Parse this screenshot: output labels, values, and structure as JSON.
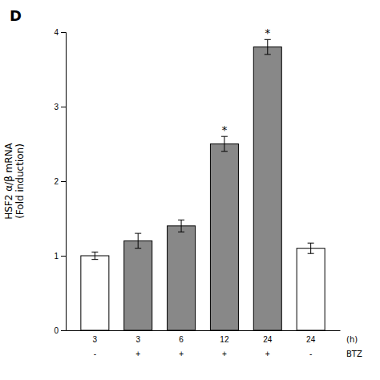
{
  "chart_data": {
    "type": "bar",
    "title": "D",
    "categories": [
      [
        "3",
        "-"
      ],
      [
        "3",
        "+"
      ],
      [
        "6",
        "+"
      ],
      [
        "12",
        "+"
      ],
      [
        "24",
        "+"
      ],
      [
        "24",
        "-"
      ]
    ],
    "xlabel": [
      "(h)",
      "BTZ"
    ],
    "ylabel": "HSF2 α/β mRNA\n(Fold induction)",
    "values": [
      1.0,
      1.2,
      1.4,
      2.5,
      3.8,
      1.1
    ],
    "errors": [
      0.05,
      0.1,
      0.08,
      0.1,
      0.1,
      0.07
    ],
    "colors": [
      "white",
      "#888888",
      "#888888",
      "#888888",
      "#888888",
      "white"
    ],
    "annotations": [
      {
        "text": "*",
        "index": 3
      },
      {
        "text": "*",
        "index": 4
      }
    ],
    "ylim": [
      0,
      4
    ],
    "yticks": [
      0,
      1,
      2,
      3,
      4
    ]
  }
}
